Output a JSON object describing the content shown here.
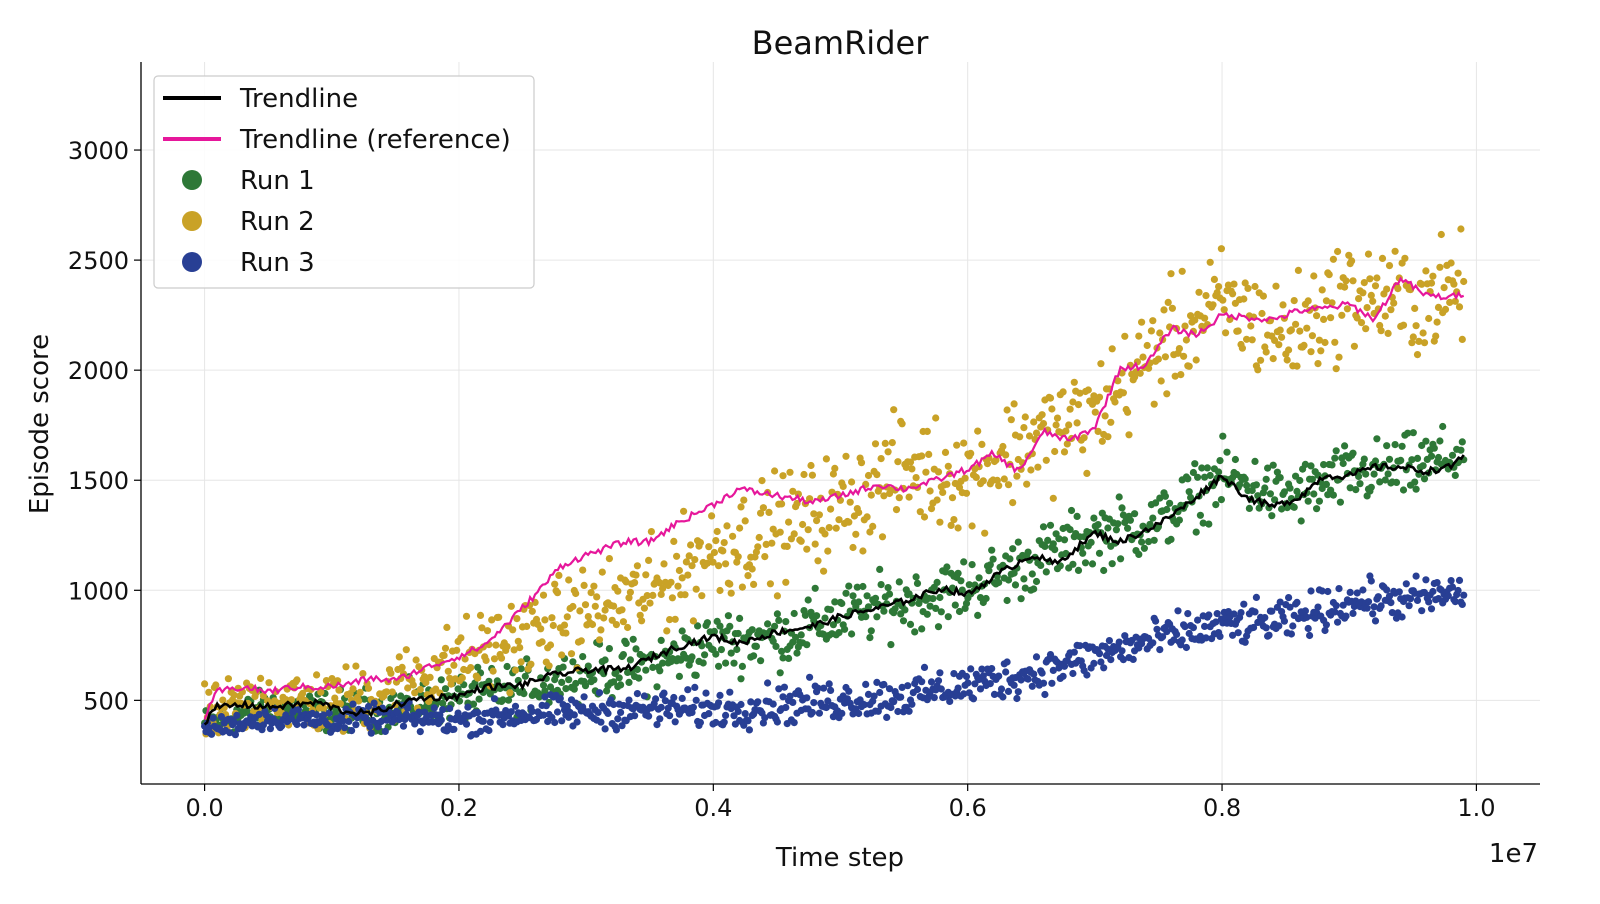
{
  "chart_data": {
    "type": "scatter",
    "title": "BeamRider",
    "xlabel": "Time step",
    "ylabel": "Episode score",
    "x_offset_label": "1e7",
    "xlim": [
      -0.05,
      1.05
    ],
    "ylim": [
      120,
      3400
    ],
    "x_ticks": [
      0.0,
      0.2,
      0.4,
      0.6,
      0.8,
      1.0
    ],
    "x_tick_labels": [
      "0.0",
      "0.2",
      "0.4",
      "0.6",
      "0.8",
      "1.0"
    ],
    "y_ticks": [
      500,
      1000,
      1500,
      2000,
      2500,
      3000
    ],
    "y_tick_labels": [
      "500",
      "1000",
      "1500",
      "2000",
      "2500",
      "3000"
    ],
    "grid": true,
    "legend_position": "top-left",
    "series": [
      {
        "name": "Run 1",
        "kind": "scatter",
        "color": "#2e7837",
        "x": [
          0.0,
          0.05,
          0.1,
          0.15,
          0.2,
          0.25,
          0.3,
          0.35,
          0.4,
          0.45,
          0.5,
          0.55,
          0.6,
          0.65,
          0.7,
          0.75,
          0.8,
          0.85,
          0.9,
          0.95,
          0.99
        ],
        "y": [
          390,
          470,
          450,
          470,
          510,
          560,
          620,
          660,
          760,
          790,
          880,
          950,
          1010,
          1130,
          1250,
          1310,
          1520,
          1420,
          1520,
          1560,
          1620
        ],
        "spread": 140
      },
      {
        "name": "Run 2",
        "kind": "scatter",
        "color": "#c9a227",
        "x": [
          0.0,
          0.05,
          0.1,
          0.15,
          0.2,
          0.25,
          0.3,
          0.35,
          0.4,
          0.45,
          0.5,
          0.55,
          0.6,
          0.65,
          0.7,
          0.75,
          0.8,
          0.85,
          0.9,
          0.95,
          0.99
        ],
        "y": [
          420,
          520,
          480,
          560,
          680,
          790,
          900,
          990,
          1180,
          1280,
          1380,
          1550,
          1520,
          1680,
          1800,
          2100,
          2300,
          2150,
          2350,
          2300,
          2380
        ],
        "spread": 240
      },
      {
        "name": "Run 3",
        "kind": "scatter",
        "color": "#283f94",
        "x": [
          0.0,
          0.05,
          0.1,
          0.15,
          0.2,
          0.25,
          0.3,
          0.35,
          0.4,
          0.45,
          0.5,
          0.55,
          0.6,
          0.65,
          0.7,
          0.75,
          0.8,
          0.85,
          0.9,
          0.95,
          0.99
        ],
        "y": [
          370,
          420,
          410,
          420,
          410,
          440,
          450,
          460,
          460,
          480,
          500,
          520,
          570,
          620,
          700,
          780,
          840,
          860,
          950,
          960,
          990
        ],
        "spread": 90
      },
      {
        "name": "Trendline",
        "kind": "line",
        "color": "#000000",
        "x": [
          0.0,
          0.01,
          0.03,
          0.05,
          0.07,
          0.09,
          0.11,
          0.13,
          0.15,
          0.17,
          0.2,
          0.22,
          0.25,
          0.27,
          0.3,
          0.33,
          0.35,
          0.37,
          0.4,
          0.42,
          0.45,
          0.48,
          0.5,
          0.53,
          0.55,
          0.58,
          0.6,
          0.62,
          0.65,
          0.67,
          0.7,
          0.72,
          0.75,
          0.77,
          0.8,
          0.82,
          0.84,
          0.86,
          0.88,
          0.9,
          0.92,
          0.94,
          0.96,
          0.98,
          0.99
        ],
        "y": [
          400,
          470,
          480,
          470,
          480,
          490,
          450,
          440,
          480,
          510,
          520,
          560,
          570,
          610,
          640,
          640,
          690,
          740,
          790,
          760,
          810,
          840,
          880,
          920,
          950,
          1010,
          980,
          1060,
          1160,
          1120,
          1260,
          1220,
          1300,
          1380,
          1520,
          1420,
          1380,
          1420,
          1520,
          1520,
          1560,
          1560,
          1540,
          1560,
          1620
        ]
      },
      {
        "name": "Trendline (reference)",
        "kind": "line",
        "color": "#e6179b",
        "x": [
          0.0,
          0.01,
          0.03,
          0.05,
          0.07,
          0.09,
          0.11,
          0.13,
          0.15,
          0.17,
          0.2,
          0.22,
          0.24,
          0.26,
          0.28,
          0.3,
          0.33,
          0.35,
          0.37,
          0.4,
          0.42,
          0.44,
          0.46,
          0.48,
          0.5,
          0.53,
          0.55,
          0.57,
          0.6,
          0.62,
          0.64,
          0.66,
          0.68,
          0.7,
          0.72,
          0.74,
          0.76,
          0.78,
          0.8,
          0.82,
          0.84,
          0.86,
          0.88,
          0.9,
          0.92,
          0.94,
          0.96,
          0.98,
          0.99
        ],
        "y": [
          420,
          540,
          560,
          540,
          560,
          560,
          570,
          600,
          590,
          640,
          700,
          750,
          860,
          980,
          1110,
          1160,
          1220,
          1220,
          1300,
          1390,
          1460,
          1440,
          1420,
          1400,
          1430,
          1480,
          1460,
          1490,
          1550,
          1620,
          1540,
          1720,
          1680,
          1740,
          2010,
          2020,
          2190,
          2160,
          2250,
          2240,
          2230,
          2270,
          2280,
          2300,
          2230,
          2420,
          2340,
          2330,
          2350
        ]
      }
    ]
  }
}
